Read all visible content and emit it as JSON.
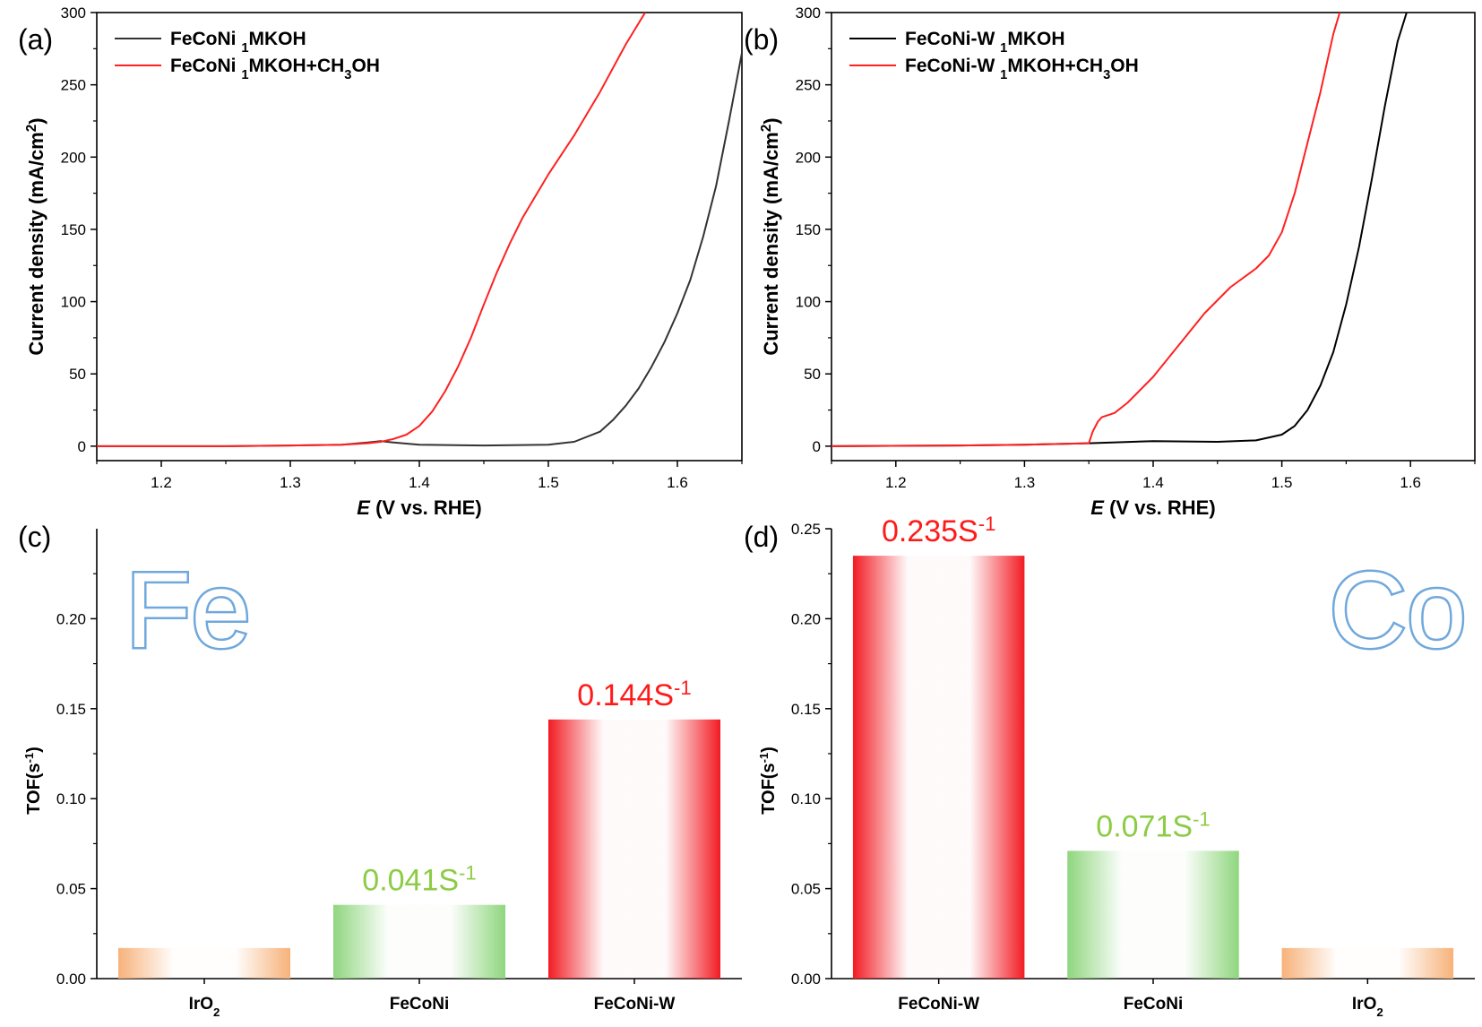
{
  "chart_data": [
    {
      "panel": "(a)",
      "type": "line",
      "xlabel": "E (V vs. RHE)",
      "ylabel": "Current density (mA/cm2)",
      "xlim": [
        1.15,
        1.65
      ],
      "ylim": [
        -10,
        300
      ],
      "xticks": [
        1.2,
        1.3,
        1.4,
        1.5,
        1.6
      ],
      "yticks": [
        0,
        50,
        100,
        150,
        200,
        250,
        300
      ],
      "legend_position": "top-left",
      "series": [
        {
          "name": "FeCoNi 1MKOH",
          "color": "#333333",
          "x": [
            1.15,
            1.25,
            1.3,
            1.34,
            1.36,
            1.37,
            1.38,
            1.4,
            1.45,
            1.5,
            1.52,
            1.54,
            1.55,
            1.56,
            1.57,
            1.58,
            1.59,
            1.6,
            1.61,
            1.62,
            1.63,
            1.64,
            1.65
          ],
          "y": [
            0,
            0,
            0.5,
            1,
            2.5,
            3.5,
            2.5,
            1,
            0.5,
            1,
            3,
            10,
            18,
            28,
            40,
            55,
            72,
            92,
            115,
            145,
            180,
            225,
            272
          ]
        },
        {
          "name": "FeCoNi 1MKOH+CH3OH",
          "color": "#ff2020",
          "x": [
            1.15,
            1.25,
            1.3,
            1.34,
            1.36,
            1.37,
            1.38,
            1.39,
            1.4,
            1.41,
            1.42,
            1.43,
            1.44,
            1.45,
            1.46,
            1.47,
            1.48,
            1.5,
            1.52,
            1.54,
            1.56,
            1.575
          ],
          "y": [
            0,
            0,
            0.5,
            1,
            2,
            3,
            5,
            8,
            14,
            24,
            38,
            55,
            75,
            98,
            120,
            140,
            158,
            188,
            215,
            245,
            278,
            300
          ]
        }
      ]
    },
    {
      "panel": "(b)",
      "type": "line",
      "xlabel": "E (V vs. RHE)",
      "ylabel": "Current density (mA/cm2)",
      "xlim": [
        1.15,
        1.65
      ],
      "ylim": [
        -10,
        300
      ],
      "xticks": [
        1.2,
        1.3,
        1.4,
        1.5,
        1.6
      ],
      "yticks": [
        0,
        50,
        100,
        150,
        200,
        250,
        300
      ],
      "legend_position": "top-left",
      "series": [
        {
          "name": "FeCoNi-W 1MKOH",
          "color": "#000000",
          "x": [
            1.15,
            1.25,
            1.3,
            1.35,
            1.4,
            1.45,
            1.48,
            1.5,
            1.51,
            1.52,
            1.53,
            1.54,
            1.55,
            1.56,
            1.57,
            1.58,
            1.59,
            1.597
          ],
          "y": [
            0,
            0.5,
            1,
            2,
            3.5,
            3,
            4,
            8,
            14,
            25,
            42,
            65,
            98,
            138,
            185,
            235,
            280,
            300
          ]
        },
        {
          "name": "FeCoNi-W 1MKOH+CH3OH",
          "color": "#ff2020",
          "x": [
            1.15,
            1.25,
            1.3,
            1.35,
            1.353,
            1.357,
            1.36,
            1.37,
            1.38,
            1.4,
            1.42,
            1.44,
            1.46,
            1.48,
            1.49,
            1.5,
            1.51,
            1.52,
            1.53,
            1.54,
            1.545
          ],
          "y": [
            0,
            0.5,
            1,
            2,
            10,
            17,
            20,
            23,
            30,
            48,
            70,
            92,
            110,
            123,
            132,
            148,
            175,
            210,
            245,
            285,
            300
          ]
        }
      ]
    },
    {
      "panel": "(c)",
      "type": "bar",
      "watermark": "Fe",
      "ylabel": "TOF(s-1)",
      "ylim": [
        0,
        0.25
      ],
      "yticks": [
        0.0,
        0.05,
        0.1,
        0.15,
        0.2
      ],
      "categories": [
        "IrO2",
        "FeCoNi",
        "FeCoNi-W"
      ],
      "values": [
        0.017,
        0.041,
        0.144
      ],
      "colors": [
        "#f7b27a",
        "#8fd67e",
        "#f21b23"
      ],
      "data_labels": [
        "",
        "0.041S-1",
        "0.144S-1"
      ]
    },
    {
      "panel": "(d)",
      "type": "bar",
      "watermark": "Co",
      "ylabel": "TOF(s-1)",
      "ylim": [
        0,
        0.25
      ],
      "yticks": [
        0.0,
        0.05,
        0.1,
        0.15,
        0.2,
        0.25
      ],
      "categories": [
        "FeCoNi-W",
        "FeCoNi",
        "IrO2"
      ],
      "values": [
        0.235,
        0.071,
        0.017
      ],
      "colors": [
        "#f21b23",
        "#8fd67e",
        "#f7b27a"
      ],
      "data_labels": [
        "0.235S-1",
        "0.071S-1",
        ""
      ]
    }
  ],
  "label_colors": {
    "red": "#ff1a1a",
    "green": "#8ccc44",
    "axis": "#000000",
    "watermark": "#6fa8dc"
  }
}
